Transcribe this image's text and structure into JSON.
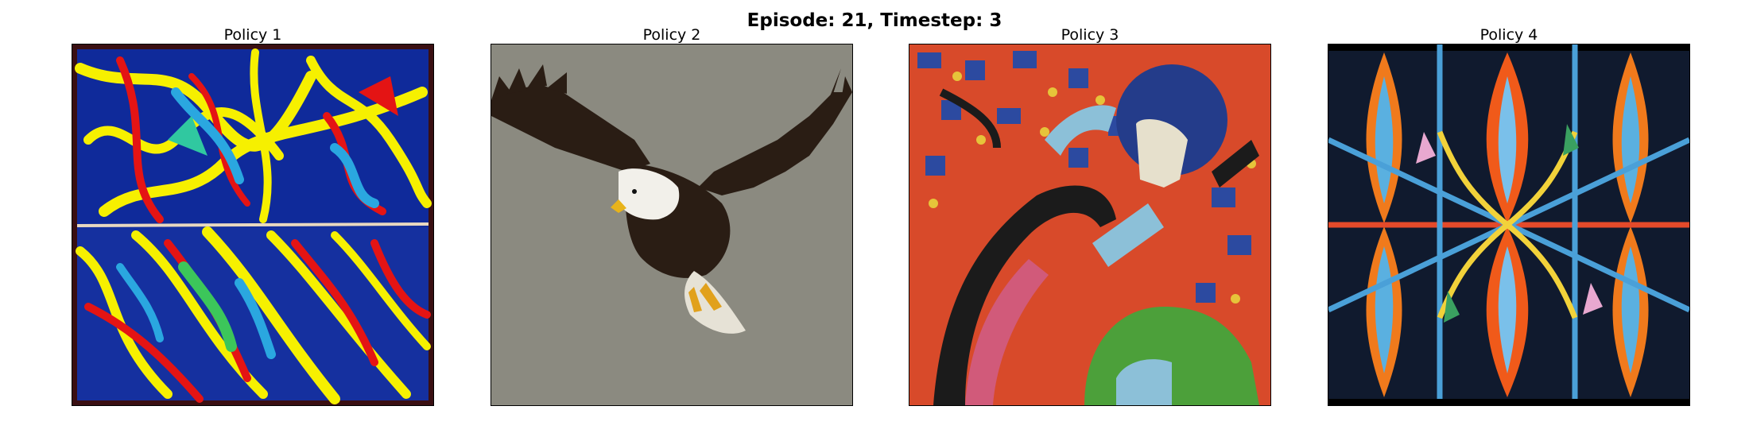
{
  "figure": {
    "title": "Episode: 21, Timestep: 3"
  },
  "panels": [
    {
      "title": "Policy 1",
      "image": "abstract-painting-blue-yellow-red-swirls"
    },
    {
      "title": "Policy 2",
      "image": "bald-eagle-in-flight-on-gray-background"
    },
    {
      "title": "Policy 3",
      "image": "embroidered-tapestry-figure-on-red-pattern"
    },
    {
      "title": "Policy 4",
      "image": "symmetric-kaleidoscope-orange-blue-painting"
    }
  ]
}
